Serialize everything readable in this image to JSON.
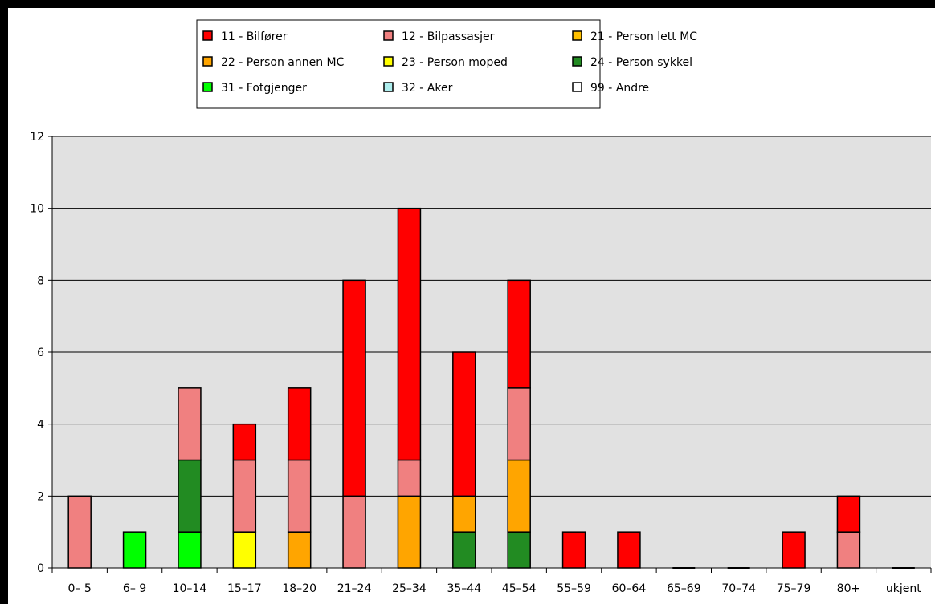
{
  "chart_data": {
    "type": "bar",
    "stacked": true,
    "title": "",
    "xlabel": "",
    "ylabel": "",
    "ylim": [
      0,
      12
    ],
    "yticks": [
      0,
      2,
      4,
      6,
      8,
      10,
      12
    ],
    "grid": true,
    "legend_position": "top",
    "plot_background": "#e1e1e1",
    "categories": [
      "0– 5",
      "6– 9",
      "10–14",
      "15–17",
      "18–20",
      "21–24",
      "25–34",
      "35–44",
      "45–54",
      "55–59",
      "60–64",
      "65–69",
      "70–74",
      "75–79",
      "80+",
      "ukjent"
    ],
    "series": [
      {
        "name": "11 - Bilfører",
        "color": "#ff0000",
        "values": [
          0,
          0,
          0,
          1,
          2,
          6,
          7,
          4,
          3,
          1,
          1,
          0,
          0,
          1,
          1,
          0
        ]
      },
      {
        "name": "12 - Bilpassasjer",
        "color": "#f08080",
        "values": [
          2,
          0,
          2,
          2,
          2,
          2,
          1,
          0,
          2,
          0,
          0,
          0,
          0,
          0,
          1,
          0
        ]
      },
      {
        "name": "21 - Person lett MC",
        "color": "#ffc000",
        "values": [
          0,
          0,
          0,
          0,
          0,
          0,
          0,
          0,
          0,
          0,
          0,
          0,
          0,
          0,
          0,
          0
        ]
      },
      {
        "name": "22 - Person annen MC",
        "color": "#ffa500",
        "values": [
          0,
          0,
          0,
          0,
          1,
          0,
          2,
          1,
          2,
          0,
          0,
          0,
          0,
          0,
          0,
          0
        ]
      },
      {
        "name": "23 - Person moped",
        "color": "#ffff00",
        "values": [
          0,
          0,
          0,
          1,
          0,
          0,
          0,
          0,
          0,
          0,
          0,
          0,
          0,
          0,
          0,
          0
        ]
      },
      {
        "name": "24 - Person sykkel",
        "color": "#228b22",
        "values": [
          0,
          0,
          2,
          0,
          0,
          0,
          0,
          1,
          1,
          0,
          0,
          0,
          0,
          0,
          0,
          0
        ]
      },
      {
        "name": "31 - Fotgjenger",
        "color": "#00ff00",
        "values": [
          0,
          1,
          1,
          0,
          0,
          0,
          0,
          0,
          0,
          0,
          0,
          0,
          0,
          0,
          0,
          0
        ]
      },
      {
        "name": "32 - Aker",
        "color": "#aeeeee",
        "values": [
          0,
          0,
          0,
          0,
          0,
          0,
          0,
          0,
          0,
          0,
          0,
          0,
          0,
          0,
          0,
          0
        ]
      },
      {
        "name": "99 - Andre",
        "color": "#ffffff",
        "values": [
          0,
          0,
          0,
          0,
          0,
          0,
          0,
          0,
          0,
          0,
          0,
          0,
          0,
          0,
          0,
          0
        ]
      }
    ],
    "stack_order_bottom_to_top": [
      "31 - Fotgjenger",
      "24 - Person sykkel",
      "23 - Person moped",
      "22 - Person annen MC",
      "12 - Bilpassasjer",
      "11 - Bilfører"
    ],
    "legend_order": [
      "11 - Bilfører",
      "12 - Bilpassasjer",
      "21 - Person lett MC",
      "22 - Person annen MC",
      "23 - Person moped",
      "24 - Person sykkel",
      "31 - Fotgjenger",
      "32 - Aker",
      "99 - Andre"
    ]
  }
}
